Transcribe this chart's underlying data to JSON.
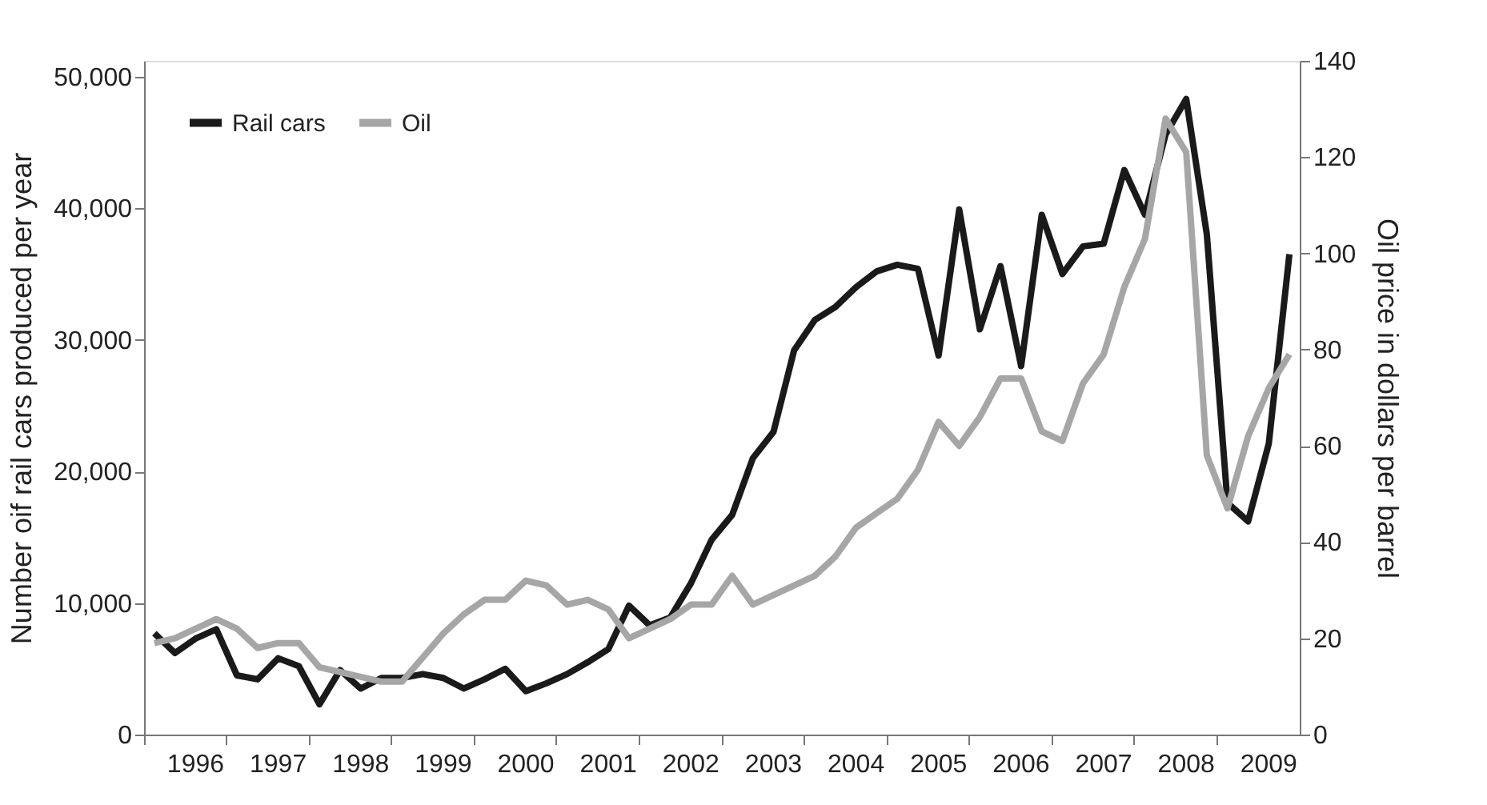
{
  "chart_data": {
    "type": "line",
    "ylabel": "Number oif rail cars produced per year",
    "y2label": "Oil price in dollars per barrel",
    "categories": [
      null,
      null,
      "1996",
      null,
      null,
      null,
      "1997",
      null,
      null,
      null,
      "1998",
      null,
      null,
      null,
      "1999",
      null,
      null,
      null,
      "2000",
      null,
      null,
      null,
      "2001",
      null,
      null,
      null,
      "2002",
      null,
      null,
      null,
      "2003",
      null,
      null,
      null,
      "2004",
      null,
      null,
      null,
      "2005",
      null,
      null,
      null,
      "2006",
      null,
      null,
      null,
      "2007",
      null,
      null,
      null,
      "2008",
      null,
      null,
      null,
      "2009",
      null
    ],
    "series": [
      {
        "name": "Rail cars",
        "color": "#1a1a1a",
        "axis": "y",
        "values": [
          7700,
          6200,
          7300,
          8000,
          4500,
          4200,
          5800,
          5200,
          2300,
          4900,
          3500,
          4300,
          4300,
          4600,
          4300,
          3500,
          4200,
          5000,
          3300,
          3900,
          4600,
          5500,
          6500,
          9800,
          8300,
          8900,
          11500,
          14800,
          16700,
          21000,
          23000,
          29200,
          31500,
          32500,
          34000,
          35200,
          35700,
          35400,
          28800,
          39900,
          30800,
          35600,
          28000,
          39500,
          35000,
          37100,
          37300,
          42900,
          39500,
          45600,
          48300,
          38000,
          17600,
          16200,
          22100,
          36500
        ]
      },
      {
        "name": "Oil",
        "color": "#a6a6a6",
        "axis": "y2",
        "values": [
          19,
          20,
          22,
          24,
          22,
          18,
          19,
          19,
          14,
          13,
          12,
          11,
          11,
          16,
          21,
          25,
          28,
          28,
          32,
          31,
          27,
          28,
          26,
          20,
          22,
          24,
          27,
          27,
          33,
          27,
          29,
          31,
          33,
          37,
          43,
          46,
          49,
          55,
          65,
          60,
          66,
          74,
          74,
          63,
          61,
          73,
          79,
          93,
          103,
          128,
          121,
          58,
          47,
          62,
          72,
          79
        ]
      }
    ],
    "ylim": [
      0,
      51200
    ],
    "yticks": [
      0,
      {
        "value": 10000,
        "label": "10,000"
      },
      {
        "value": 20000,
        "label": "20,000"
      },
      {
        "value": 30000,
        "label": "30,000"
      },
      {
        "value": 40000,
        "label": "40,000"
      },
      {
        "value": 50000,
        "label": "50,000"
      }
    ],
    "y2lim": [
      0,
      140
    ],
    "y2ticks": [
      0,
      20,
      40,
      60,
      80,
      100,
      120,
      140
    ],
    "grid": false,
    "legend": "top left",
    "marker": "none",
    "line_style": "solid"
  }
}
